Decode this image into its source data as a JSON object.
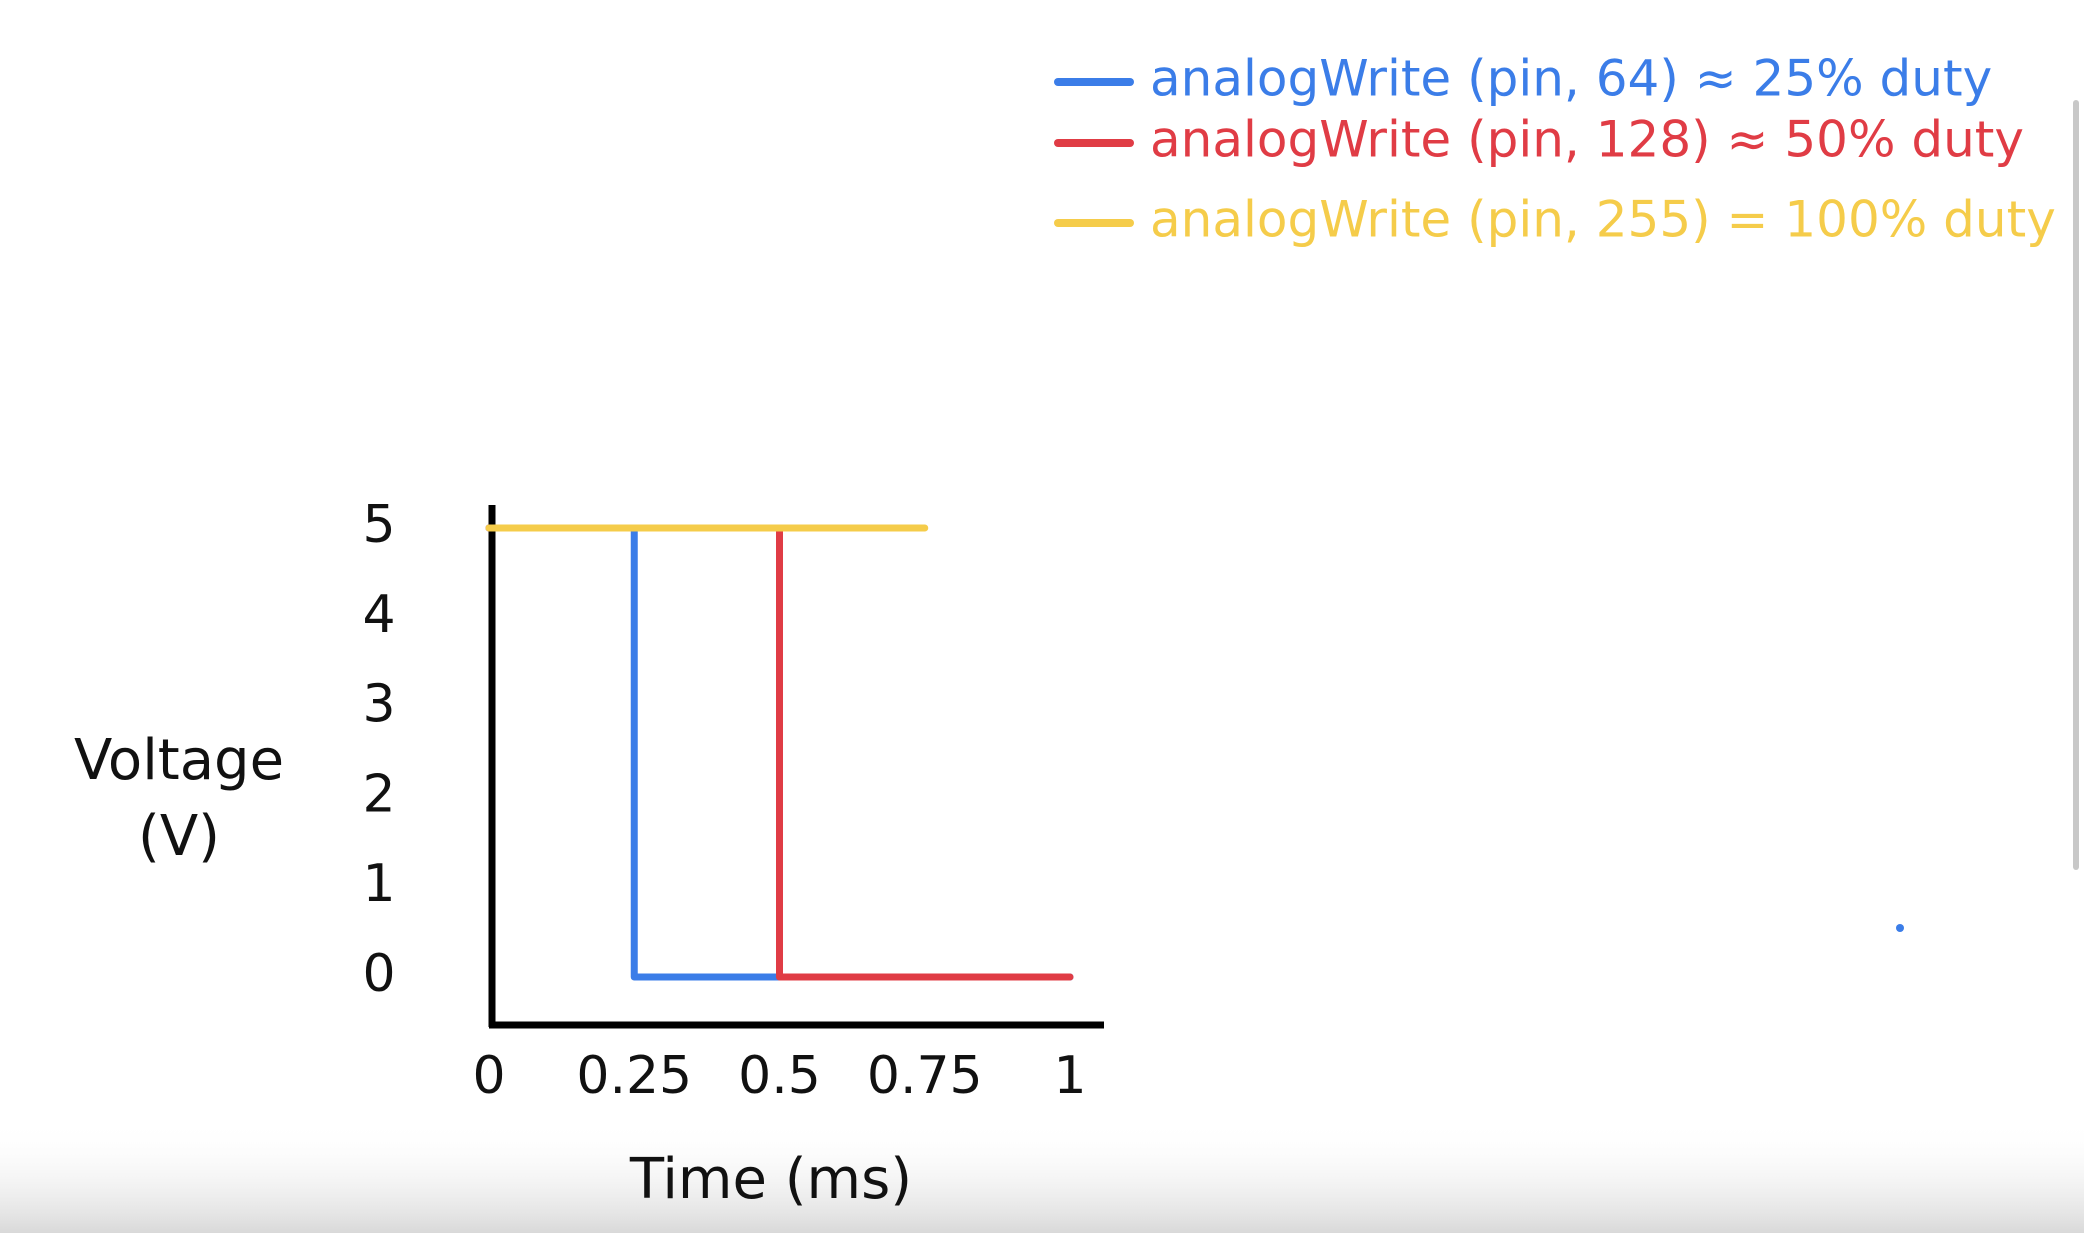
{
  "chart_data": {
    "type": "line",
    "x_label": "Time (ms)",
    "y_label_lines": [
      "Voltage",
      "(V)"
    ],
    "xlim": [
      0,
      1
    ],
    "xticks": [
      0,
      0.25,
      0.5,
      0.75,
      1
    ],
    "ylim": [
      0,
      5
    ],
    "yticks": [
      0,
      1,
      2,
      3,
      4,
      5
    ],
    "legend": "top-right",
    "series": [
      {
        "name": "analogWrite (pin, 64) ≈ 25% duty",
        "color": "#3b7de8",
        "x": [
          0,
          0.25,
          0.25,
          1
        ],
        "values": [
          5,
          5,
          0,
          0
        ]
      },
      {
        "name": "analogWrite (pin, 128) ≈ 50% duty",
        "color": "#e03c45",
        "x": [
          0,
          0.5,
          0.5,
          1
        ],
        "values": [
          5,
          5,
          0,
          0
        ]
      },
      {
        "name": "analogWrite (pin, 255) = 100% duty",
        "color": "#f5cc4a",
        "x": [
          0,
          0.75
        ],
        "values": [
          5,
          5
        ]
      }
    ]
  }
}
